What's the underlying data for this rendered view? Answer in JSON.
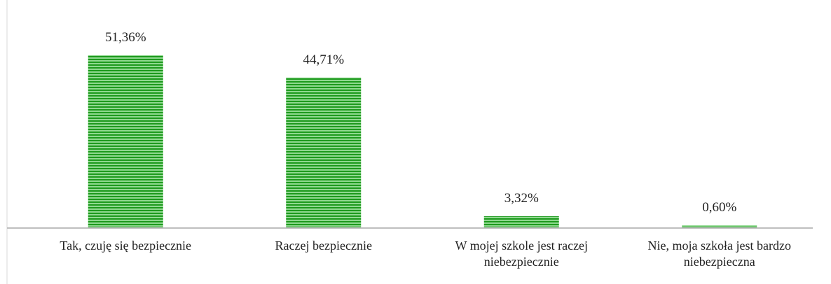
{
  "chart_data": {
    "type": "bar",
    "categories": [
      "Tak, czuję się bezpiecznie",
      "Raczej bezpiecznie",
      "W mojej szkole jest raczej niebezpiecznie",
      "Nie, moja szkoła jest bardzo niebezpieczna"
    ],
    "values": [
      51.36,
      44.71,
      3.32,
      0.6
    ],
    "value_labels": [
      "51,36%",
      "44,71%",
      "3,32%",
      "0,60%"
    ],
    "color": "#1e9a1e"
  }
}
